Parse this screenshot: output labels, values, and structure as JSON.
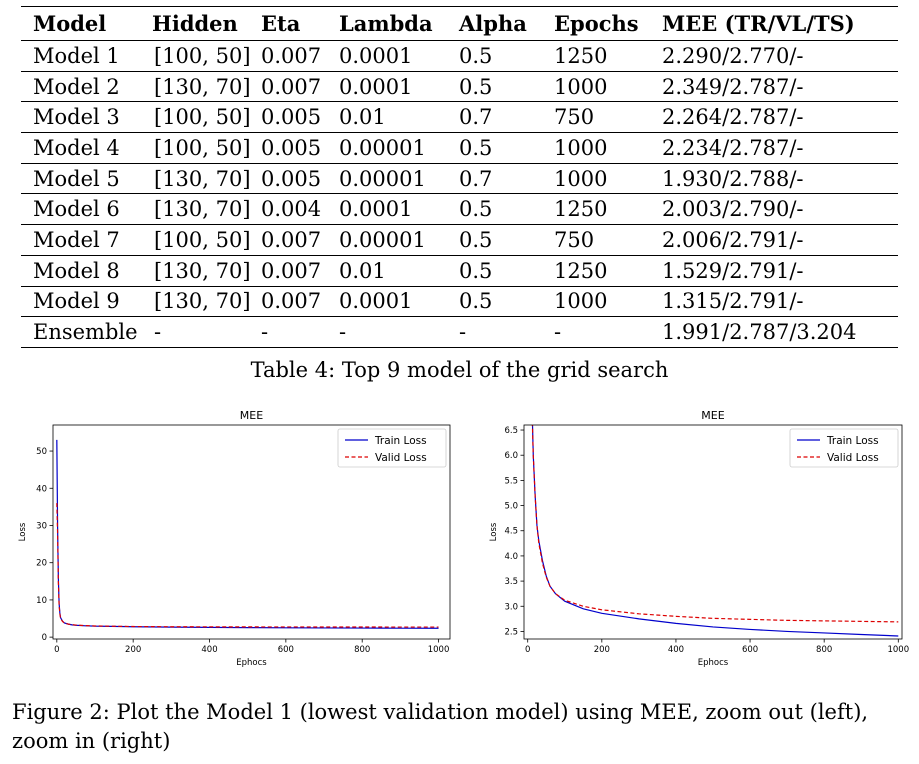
{
  "table": {
    "headers": [
      "Model",
      "Hidden",
      "Eta",
      "Lambda",
      "Alpha",
      "Epochs",
      "MEE (TR/VL/TS)"
    ],
    "rows": [
      [
        "Model 1",
        "[100, 50]",
        "0.007",
        "0.0001",
        "0.5",
        "1250",
        "2.290/2.770/-"
      ],
      [
        "Model 2",
        "[130, 70]",
        "0.007",
        "0.0001",
        "0.5",
        "1000",
        "2.349/2.787/-"
      ],
      [
        "Model 3",
        "[100, 50]",
        "0.005",
        "0.01",
        "0.7",
        "750",
        "2.264/2.787/-"
      ],
      [
        "Model 4",
        "[100, 50]",
        "0.005",
        "0.00001",
        "0.5",
        "1000",
        "2.234/2.787/-"
      ],
      [
        "Model 5",
        "[130, 70]",
        "0.005",
        "0.00001",
        "0.7",
        "1000",
        "1.930/2.788/-"
      ],
      [
        "Model 6",
        "[130, 70]",
        "0.004",
        "0.0001",
        "0.5",
        "1250",
        "2.003/2.790/-"
      ],
      [
        "Model 7",
        "[100, 50]",
        "0.007",
        "0.00001",
        "0.5",
        "750",
        "2.006/2.791/-"
      ],
      [
        "Model 8",
        "[130, 70]",
        "0.007",
        "0.01",
        "0.5",
        "1250",
        "1.529/2.791/-"
      ],
      [
        "Model 9",
        "[130, 70]",
        "0.007",
        "0.0001",
        "0.5",
        "1000",
        "1.315/2.791/-"
      ],
      [
        "Ensemble",
        "-",
        "-",
        "-",
        "-",
        "-",
        "1.991/2.787/3.204"
      ]
    ],
    "caption": "Table 4: Top 9 model of the grid search"
  },
  "figure_caption": "Figure 2: Plot the Model 1 (lowest validation model) using MEE, zoom out (left), zoom in (right)",
  "colors": {
    "train": "#0000cc",
    "valid": "#dd0000"
  },
  "chart_data": [
    {
      "type": "line",
      "title": "MEE",
      "xlabel": "Ephocs",
      "ylabel": "Loss",
      "xlim": [
        -10,
        1030
      ],
      "ylim": [
        -0.5,
        57
      ],
      "xticks": [
        0,
        200,
        400,
        600,
        800,
        1000
      ],
      "yticks": [
        0,
        10,
        20,
        30,
        40,
        50
      ],
      "grid": false,
      "legend": "top-right",
      "series": [
        {
          "name": "Train Loss",
          "style": "solid",
          "x": [
            0,
            2,
            4,
            6,
            8,
            10,
            15,
            20,
            30,
            40,
            50,
            75,
            100,
            200,
            300,
            400,
            500,
            600,
            700,
            800,
            900,
            1000
          ],
          "y": [
            53,
            30,
            16,
            9,
            6.5,
            5.2,
            4.3,
            3.8,
            3.5,
            3.3,
            3.2,
            3.05,
            2.95,
            2.8,
            2.7,
            2.62,
            2.56,
            2.51,
            2.47,
            2.44,
            2.41,
            2.39
          ]
        },
        {
          "name": "Valid Loss",
          "style": "dashed",
          "x": [
            0,
            2,
            4,
            6,
            8,
            10,
            15,
            20,
            30,
            40,
            50,
            75,
            100,
            200,
            300,
            400,
            500,
            600,
            700,
            800,
            900,
            1000
          ],
          "y": [
            36,
            28,
            15,
            8.5,
            6.2,
            5.0,
            4.2,
            3.8,
            3.5,
            3.35,
            3.25,
            3.1,
            3.0,
            2.85,
            2.8,
            2.77,
            2.75,
            2.74,
            2.73,
            2.72,
            2.71,
            2.71
          ]
        }
      ]
    },
    {
      "type": "line",
      "title": "MEE",
      "xlabel": "Ephocs",
      "ylabel": "Loss",
      "xlim": [
        -10,
        1010
      ],
      "ylim": [
        2.35,
        6.6
      ],
      "xticks": [
        0,
        200,
        400,
        600,
        800,
        1000
      ],
      "yticks": [
        2.5,
        3.0,
        3.5,
        4.0,
        4.5,
        5.0,
        5.5,
        6.0,
        6.5
      ],
      "ytick_labels": [
        "2.5",
        "3.0",
        "3.5",
        "4.0",
        "4.5",
        "5.0",
        "5.5",
        "6.0",
        "6.5"
      ],
      "grid": false,
      "legend": "top-right",
      "series": [
        {
          "name": "Train Loss",
          "style": "solid",
          "x": [
            10,
            15,
            20,
            25,
            30,
            40,
            50,
            60,
            75,
            100,
            150,
            200,
            300,
            400,
            500,
            600,
            700,
            800,
            900,
            1000
          ],
          "y": [
            7.5,
            6.0,
            5.2,
            4.6,
            4.3,
            3.9,
            3.6,
            3.4,
            3.25,
            3.1,
            2.95,
            2.86,
            2.75,
            2.66,
            2.59,
            2.54,
            2.5,
            2.47,
            2.44,
            2.41
          ]
        },
        {
          "name": "Valid Loss",
          "style": "dashed",
          "x": [
            10,
            15,
            20,
            25,
            30,
            40,
            50,
            60,
            75,
            100,
            150,
            200,
            300,
            400,
            500,
            600,
            700,
            800,
            900,
            1000
          ],
          "y": [
            7.3,
            6.0,
            5.2,
            4.6,
            4.25,
            3.85,
            3.58,
            3.4,
            3.25,
            3.12,
            3.0,
            2.93,
            2.85,
            2.8,
            2.76,
            2.74,
            2.72,
            2.71,
            2.7,
            2.69
          ]
        }
      ]
    }
  ]
}
